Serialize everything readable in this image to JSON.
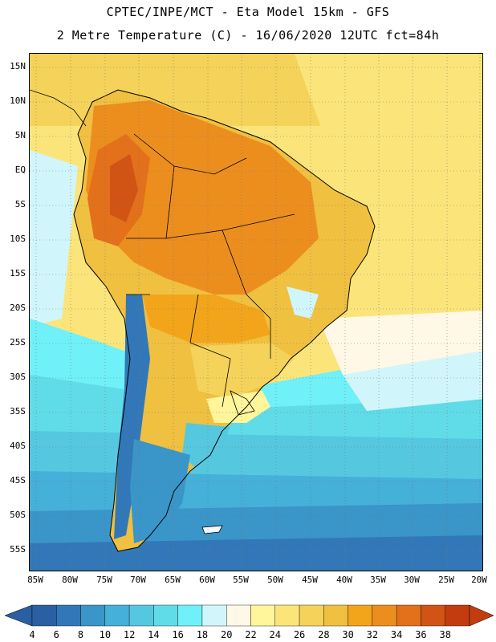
{
  "title_line1": "CPTEC/INPE/MCT -  Eta Model 15km - GFS",
  "title_line2": "2 Metre Temperature (C) - 16/06/2020 12UTC fct=84h",
  "colors": {
    "c4": "#2a5fa3",
    "c6": "#3278b8",
    "c8": "#3a95c8",
    "c10": "#45b0d8",
    "c12": "#55c8e0",
    "c14": "#60dce8",
    "c16": "#70f0f8",
    "c18": "#d0f6fc",
    "c20": "#fff8e6",
    "c22": "#fff59a",
    "c24": "#fbe57a",
    "c26": "#f5d35a",
    "c28": "#f0c040",
    "c30": "#f2a51a",
    "c32": "#ec8e1e",
    "c34": "#e3701a",
    "c36": "#d15414",
    "c38": "#c33c10",
    "ocean_n": "#f5d35a",
    "land": "#ec8e1e"
  },
  "lat_labels": [
    "15N",
    "10N",
    "5N",
    "EQ",
    "5S",
    "10S",
    "15S",
    "20S",
    "25S",
    "30S",
    "35S",
    "40S",
    "45S",
    "50S",
    "55S"
  ],
  "lon_labels": [
    "85W",
    "80W",
    "75W",
    "70W",
    "65W",
    "60W",
    "55W",
    "50W",
    "45W",
    "40W",
    "35W",
    "30W",
    "25W",
    "20W"
  ],
  "colorbar": {
    "labels": [
      "4",
      "6",
      "8",
      "10",
      "12",
      "14",
      "16",
      "18",
      "20",
      "22",
      "24",
      "26",
      "28",
      "30",
      "32",
      "34",
      "36",
      "38"
    ],
    "colors": [
      "#2a5fa3",
      "#3278b8",
      "#3a95c8",
      "#45b0d8",
      "#55c8e0",
      "#60dce8",
      "#70f0f8",
      "#d0f6fc",
      "#fff8e6",
      "#fff59a",
      "#fbe57a",
      "#f5d35a",
      "#f0c040",
      "#f2a51a",
      "#ec8e1e",
      "#e3701a",
      "#d15414",
      "#c33c10"
    ],
    "low_arrow_color": "#2a5fa3",
    "high_arrow_color": "#c33c10"
  }
}
